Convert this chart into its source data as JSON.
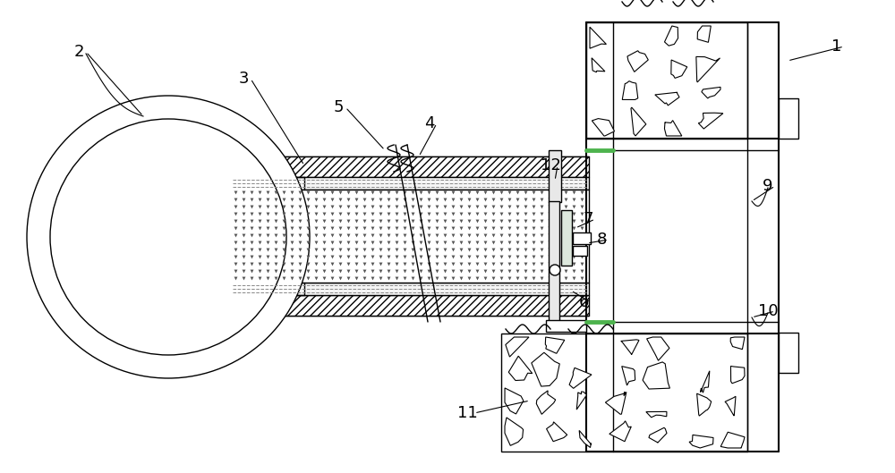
{
  "bg_color": "#ffffff",
  "line_color": "#000000",
  "green_color": "#4db34d",
  "labels": [
    [
      "1",
      935,
      52,
      880,
      68,
      true
    ],
    [
      "2",
      88,
      58,
      160,
      130,
      true
    ],
    [
      "3",
      272,
      88,
      340,
      185,
      true
    ],
    [
      "4",
      480,
      138,
      468,
      175,
      true
    ],
    [
      "5",
      378,
      120,
      430,
      168,
      true
    ],
    [
      "6",
      652,
      338,
      638,
      325,
      true
    ],
    [
      "7",
      657,
      245,
      643,
      255,
      true
    ],
    [
      "8",
      672,
      268,
      656,
      272,
      true
    ],
    [
      "9",
      858,
      208,
      840,
      225,
      true
    ],
    [
      "10",
      858,
      348,
      840,
      355,
      true
    ],
    [
      "11",
      522,
      462,
      592,
      448,
      true
    ],
    [
      "12",
      615,
      185,
      620,
      202,
      true
    ]
  ]
}
